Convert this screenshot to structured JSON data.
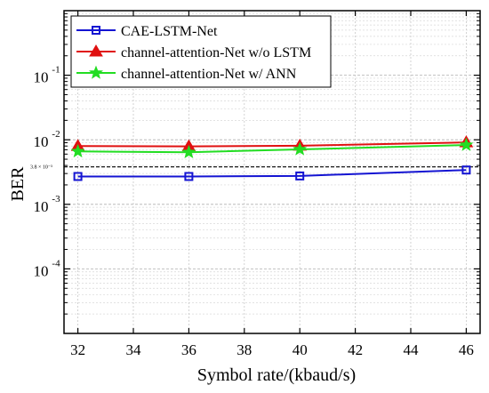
{
  "chart_data": {
    "type": "line",
    "xlabel": "Symbol rate/(kbaud/s)",
    "ylabel": "BER",
    "x_ticks": [
      32,
      34,
      36,
      38,
      40,
      42,
      44,
      46
    ],
    "xlim": [
      31.5,
      46.5
    ],
    "ylim": [
      1e-05,
      1
    ],
    "y_scale": "log",
    "y_ticks": [
      {
        "value": 0.0001,
        "base": "10",
        "exp": "-4"
      },
      {
        "value": 0.001,
        "base": "10",
        "exp": "-3"
      },
      {
        "value": 0.01,
        "base": "10",
        "exp": "-2"
      },
      {
        "value": 0.1,
        "base": "10",
        "exp": "-1"
      }
    ],
    "grid": true,
    "minor_grid": true,
    "legend_position": "top-left",
    "threshold": {
      "value": 0.0038,
      "label": "3.8 × 10⁻³"
    },
    "series": [
      {
        "name": "CAE-LSTM-Net",
        "color": "#1414d2",
        "marker": "square",
        "x": [
          32,
          36,
          40,
          46
        ],
        "y": [
          0.0027,
          0.0027,
          0.00275,
          0.0034
        ]
      },
      {
        "name": "channel-attention-Net w/o LSTM",
        "color": "#e01010",
        "marker": "triangle",
        "x": [
          32,
          36,
          40,
          46
        ],
        "y": [
          0.008,
          0.0079,
          0.0081,
          0.0091
        ]
      },
      {
        "name": "channel-attention-Net w/ ANN",
        "color": "#22dd22",
        "marker": "star",
        "x": [
          32,
          36,
          40,
          46
        ],
        "y": [
          0.0066,
          0.0064,
          0.0071,
          0.0083
        ]
      }
    ]
  }
}
